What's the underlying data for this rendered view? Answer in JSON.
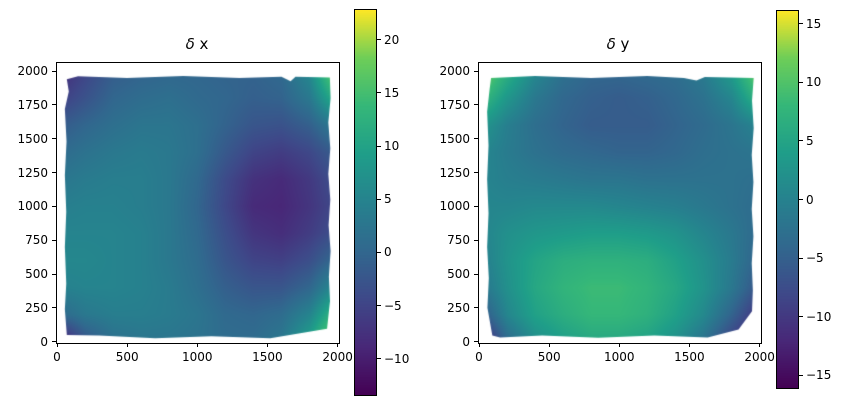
{
  "figure": {
    "background": "#ffffff",
    "frame_color": "#000000",
    "text_color": "#000000"
  },
  "viridis_stops": [
    "#440154",
    "#482878",
    "#3e4989",
    "#31688e",
    "#26828e",
    "#1f9e89",
    "#35b779",
    "#6ece58",
    "#fde725"
  ],
  "chart_data": [
    {
      "type": "heatmap",
      "title": "δ x",
      "title_symbol": "δ",
      "title_suffix": " x",
      "xlabel": "",
      "ylabel": "",
      "xlim": [
        0,
        2010
      ],
      "ylim": [
        -10,
        2060
      ],
      "x_ticks": [
        0,
        500,
        1000,
        1500,
        2000
      ],
      "y_ticks": [
        0,
        250,
        500,
        750,
        1000,
        1250,
        1500,
        1750,
        2000
      ],
      "colormap": "viridis",
      "vmin": -13.4,
      "vmax": 22.8,
      "colorbar_ticks": [
        20,
        15,
        10,
        5,
        0,
        -5,
        -10
      ],
      "grid_col_x": [
        0,
        200,
        400,
        600,
        800,
        1000,
        1200,
        1400,
        1600,
        1800,
        2000
      ],
      "grid_row_y": [
        2000,
        1800,
        1600,
        1400,
        1200,
        1000,
        800,
        600,
        400,
        200,
        0
      ],
      "values": [
        [
          -9,
          -5,
          -1.5,
          -0.5,
          0,
          0,
          -0.5,
          -0.5,
          0.5,
          6,
          21
        ],
        [
          -6,
          -3,
          0,
          1,
          1.5,
          0.5,
          0,
          -1,
          -0.5,
          3,
          13
        ],
        [
          -2,
          0,
          1.5,
          2.5,
          2.5,
          1.5,
          -0.5,
          -2.5,
          -3,
          -1,
          4
        ],
        [
          0.5,
          2,
          3,
          3.5,
          3,
          1.5,
          -2,
          -5,
          -6,
          -4.5,
          -1
        ],
        [
          2.5,
          3.5,
          4,
          4,
          3,
          0.5,
          -4,
          -7.5,
          -8.5,
          -6.5,
          -3
        ],
        [
          4,
          4.5,
          4.5,
          4,
          3,
          0,
          -4.5,
          -8.5,
          -9,
          -7,
          -4
        ],
        [
          5,
          5,
          5,
          4.5,
          3,
          0.5,
          -3.5,
          -7,
          -8,
          -6,
          -3
        ],
        [
          5.5,
          5.5,
          5,
          4.5,
          3,
          1,
          -2.5,
          -5,
          -5.5,
          -3.5,
          1
        ],
        [
          4.5,
          5,
          5,
          4.5,
          3.5,
          1.5,
          -1,
          -2.5,
          -2.5,
          0,
          7
        ],
        [
          0,
          3,
          4,
          4,
          3.5,
          2.5,
          0.5,
          0,
          1,
          5,
          15
        ],
        [
          -12,
          -3,
          1.5,
          2.5,
          2.5,
          2,
          1,
          1,
          3,
          10,
          22
        ]
      ],
      "mask_polygon": [
        [
          70,
          50
        ],
        [
          56,
          240
        ],
        [
          66,
          430
        ],
        [
          56,
          700
        ],
        [
          66,
          960
        ],
        [
          56,
          1230
        ],
        [
          68,
          1480
        ],
        [
          56,
          1720
        ],
        [
          84,
          1850
        ],
        [
          70,
          1940
        ],
        [
          150,
          1962
        ],
        [
          500,
          1950
        ],
        [
          900,
          1963
        ],
        [
          1300,
          1950
        ],
        [
          1600,
          1958
        ],
        [
          1665,
          1925
        ],
        [
          1700,
          1958
        ],
        [
          1945,
          1952
        ],
        [
          1950,
          1800
        ],
        [
          1934,
          1620
        ],
        [
          1948,
          1430
        ],
        [
          1934,
          1240
        ],
        [
          1948,
          1050
        ],
        [
          1936,
          860
        ],
        [
          1950,
          670
        ],
        [
          1938,
          480
        ],
        [
          1946,
          300
        ],
        [
          1925,
          95
        ],
        [
          1520,
          25
        ],
        [
          1100,
          40
        ],
        [
          700,
          25
        ],
        [
          300,
          45
        ],
        [
          70,
          50
        ]
      ]
    },
    {
      "type": "heatmap",
      "title": "δ y",
      "title_symbol": "δ",
      "title_suffix": " y",
      "xlabel": "",
      "ylabel": "",
      "xlim": [
        0,
        2010
      ],
      "ylim": [
        -10,
        2060
      ],
      "x_ticks": [
        0,
        500,
        1000,
        1500,
        2000
      ],
      "y_ticks": [
        0,
        250,
        500,
        750,
        1000,
        1250,
        1500,
        1750,
        2000
      ],
      "colormap": "viridis",
      "vmin": -16.1,
      "vmax": 16.1,
      "colorbar_ticks": [
        15,
        10,
        5,
        0,
        -5,
        -10,
        -15
      ],
      "grid_col_x": [
        0,
        200,
        400,
        600,
        800,
        1000,
        1200,
        1400,
        1600,
        1800,
        2000
      ],
      "grid_row_y": [
        2000,
        1800,
        1600,
        1400,
        1200,
        1000,
        800,
        600,
        400,
        200,
        0
      ],
      "values": [
        [
          14,
          7,
          1,
          -2.5,
          -4,
          -4,
          -3.5,
          -3,
          -1,
          4,
          13
        ],
        [
          9,
          3,
          -1.5,
          -4,
          -5,
          -5.5,
          -5,
          -4,
          -2.5,
          0.5,
          8
        ],
        [
          3.5,
          -0.5,
          -3,
          -4.5,
          -5.5,
          -5.5,
          -5.5,
          -4.5,
          -3.5,
          -2,
          0.5
        ],
        [
          1,
          -1,
          -2.5,
          -3.5,
          -4,
          -4.5,
          -4.5,
          -4,
          -3,
          -2.5,
          -2
        ],
        [
          0.5,
          -0.5,
          -1,
          -1.5,
          -2,
          -2,
          -2.5,
          -2.5,
          -2.5,
          -2.5,
          -3
        ],
        [
          0.5,
          0.5,
          1,
          1,
          1,
          0.5,
          0,
          -0.5,
          -1.5,
          -2.5,
          -3.5
        ],
        [
          0,
          2,
          3,
          3.5,
          4,
          4,
          3.5,
          2.5,
          0.5,
          -1.5,
          -4
        ],
        [
          -1,
          2.5,
          5,
          6.5,
          7,
          7,
          6.5,
          4.5,
          2,
          -1,
          -5
        ],
        [
          -2.5,
          2,
          5.5,
          7.5,
          8.5,
          8.5,
          7.5,
          5.5,
          2.5,
          -1.5,
          -7
        ],
        [
          -7,
          0.5,
          4.5,
          6.5,
          8,
          8,
          7,
          4.5,
          1,
          -4.5,
          -11
        ],
        [
          -14.5,
          -4,
          1.5,
          4,
          5.5,
          5.5,
          4.5,
          2,
          -2.5,
          -9,
          -14
        ]
      ],
      "mask_polygon": [
        [
          95,
          45
        ],
        [
          60,
          250
        ],
        [
          70,
          470
        ],
        [
          58,
          700
        ],
        [
          68,
          950
        ],
        [
          58,
          1200
        ],
        [
          68,
          1450
        ],
        [
          58,
          1700
        ],
        [
          76,
          1870
        ],
        [
          86,
          1950
        ],
        [
          400,
          1963
        ],
        [
          800,
          1950
        ],
        [
          1200,
          1963
        ],
        [
          1460,
          1950
        ],
        [
          1550,
          1930
        ],
        [
          1610,
          1957
        ],
        [
          1958,
          1950
        ],
        [
          1946,
          1780
        ],
        [
          1958,
          1580
        ],
        [
          1944,
          1380
        ],
        [
          1956,
          1180
        ],
        [
          1944,
          980
        ],
        [
          1956,
          780
        ],
        [
          1944,
          580
        ],
        [
          1952,
          380
        ],
        [
          1946,
          225
        ],
        [
          1850,
          90
        ],
        [
          1630,
          30
        ],
        [
          1250,
          45
        ],
        [
          850,
          28
        ],
        [
          450,
          45
        ],
        [
          150,
          30
        ],
        [
          95,
          45
        ]
      ]
    }
  ]
}
